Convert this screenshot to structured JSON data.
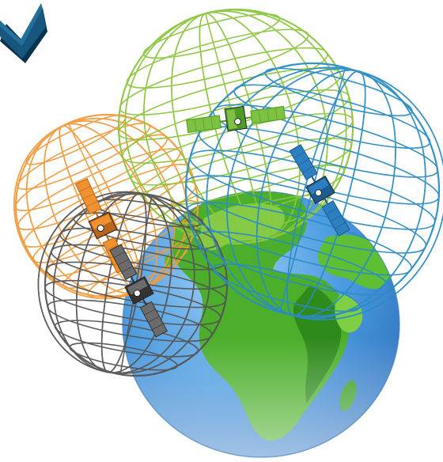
{
  "colors": {
    "background": "#ffffff",
    "arrow": "#17567d",
    "arrow_shadow": "#0a3350",
    "earth_ocean": "#3f8fd6",
    "earth_land": "#4caf2b",
    "earth_land_dark": "#2f8a1c",
    "earth_land_light": "#8ed14d",
    "green_sphere": "#8cc63f",
    "blue_sphere": "#2b8cc4",
    "orange_sphere": "#f39a3d",
    "gray_sphere": "#555555",
    "sat_green": "#7dc242",
    "sat_blue": "#2d7fc0",
    "sat_orange": "#f0902e",
    "sat_gray": "#6b6b6b"
  },
  "icons": {
    "arrow": "chevron-down-icon",
    "earth": "earth-globe-icon",
    "satellite": "satellite-icon"
  },
  "elements": {
    "spheres": [
      "green",
      "blue",
      "orange",
      "gray"
    ],
    "satellites": [
      "green",
      "blue",
      "orange",
      "gray"
    ]
  }
}
